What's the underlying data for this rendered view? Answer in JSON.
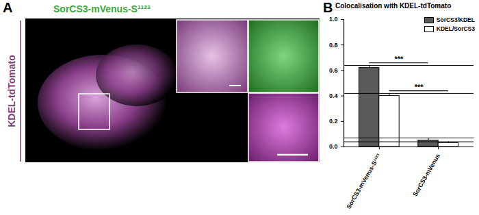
{
  "chart_data": {
    "type": "bar",
    "title": "Colocalisation with KDEL-tdTomato",
    "categories": [
      "SorCS3-mVenus-S¹¹²³",
      "SorCS3-mVenus"
    ],
    "series": [
      {
        "name": "SorCS3/KDEL",
        "color": "#5a5a5a",
        "values": [
          0.62,
          0.05
        ],
        "errors": [
          0.02,
          0.02
        ]
      },
      {
        "name": "KDEL/SorCS3",
        "color": "#ffffff",
        "values": [
          0.4,
          0.03
        ],
        "errors": [
          0.02,
          0.01
        ]
      }
    ],
    "ylim": [
      0,
      1
    ],
    "yticks": [
      {
        "value": 0,
        "label": "0.0"
      },
      0.2,
      0.4,
      0.6,
      0.8,
      {
        "value": 1,
        "label": "1.0"
      }
    ],
    "grid": false,
    "legend": "top-right",
    "annotations": [
      {
        "text": "***",
        "series": "SorCS3/KDEL",
        "y": 0.66
      },
      {
        "text": "***",
        "series": "KDEL/SorCS3",
        "y": 0.44
      }
    ]
  },
  "panels": {
    "A": {
      "label": "A",
      "title": "SorCS3-mVenus-S¹¹²³",
      "side_label": "KDEL-tdTomato"
    },
    "B": {
      "label": "B"
    }
  }
}
